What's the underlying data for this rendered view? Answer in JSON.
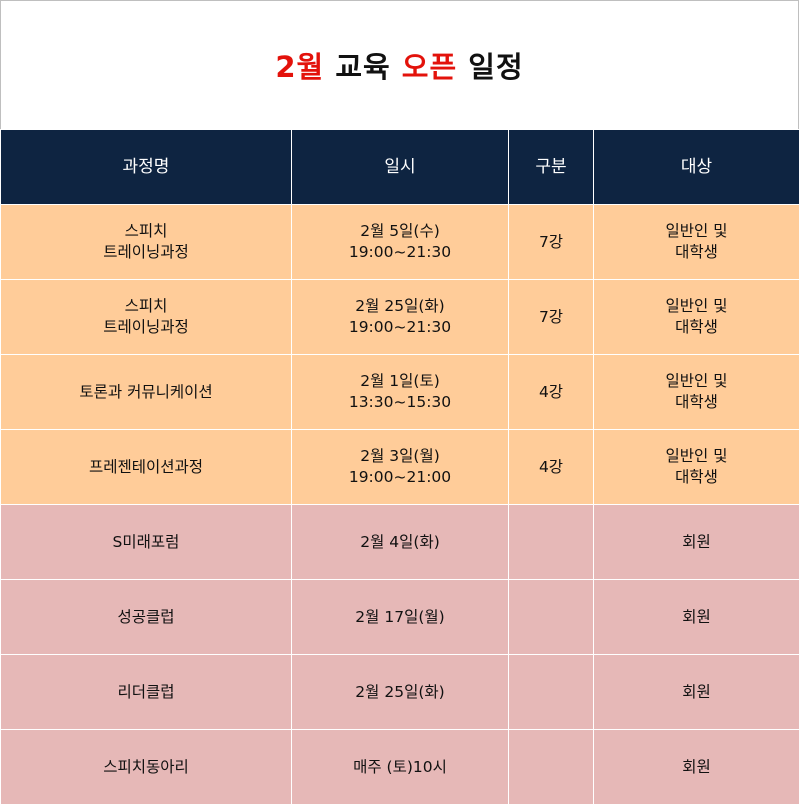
{
  "title": {
    "part1": "2월",
    "part2": "교육",
    "part3": "오픈",
    "part4": "일정"
  },
  "colors": {
    "header_bg": "#0e2441",
    "title_accent": "#e3120b",
    "row_orange": "#ffcc99",
    "row_pink": "#e6b8b7"
  },
  "table": {
    "headers": [
      "과정명",
      "일시",
      "구분",
      "대상"
    ],
    "rows": [
      {
        "course": [
          "스피치",
          "트레이닝과정"
        ],
        "date": [
          "2월 5일(수)",
          "19:00~21:30"
        ],
        "type": "7강",
        "target": [
          "일반인 및",
          "대학생"
        ]
      },
      {
        "course": [
          "스피치",
          "트레이닝과정"
        ],
        "date": [
          "2월 25일(화)",
          "19:00~21:30"
        ],
        "type": "7강",
        "target": [
          "일반인 및",
          "대학생"
        ]
      },
      {
        "course": [
          "토론과 커뮤니케이션"
        ],
        "date": [
          "2월 1일(토)",
          "13:30~15:30"
        ],
        "type": "4강",
        "target": [
          "일반인 및",
          "대학생"
        ]
      },
      {
        "course": [
          "프레젠테이션과정"
        ],
        "date": [
          "2월 3일(월)",
          "19:00~21:00"
        ],
        "type": "4강",
        "target": [
          "일반인 및",
          "대학생"
        ]
      },
      {
        "course": [
          "S미래포럼"
        ],
        "date": [
          "2월 4일(화)"
        ],
        "type": "",
        "target": [
          "회원"
        ]
      },
      {
        "course": [
          "성공클럽"
        ],
        "date": [
          "2월 17일(월)"
        ],
        "type": "",
        "target": [
          "회원"
        ]
      },
      {
        "course": [
          "리더클럽"
        ],
        "date": [
          "2월 25일(화)"
        ],
        "type": "",
        "target": [
          "회원"
        ]
      },
      {
        "course": [
          "스피치동아리"
        ],
        "date": [
          "매주 (토)10시"
        ],
        "type": "",
        "target": [
          "회원"
        ]
      }
    ]
  }
}
